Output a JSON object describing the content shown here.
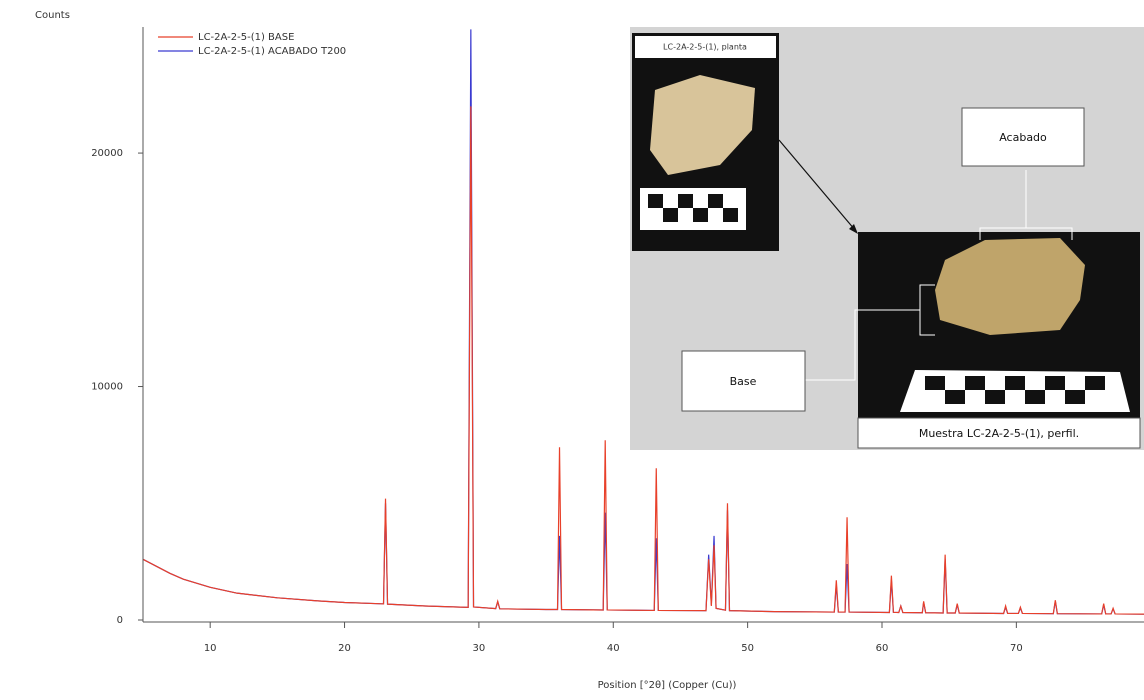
{
  "chart_data": {
    "type": "line",
    "y_label": "Counts",
    "x_label": "Position [°2θ] (Copper (Cu))",
    "x": [
      5,
      6,
      7,
      8,
      10,
      12,
      15,
      18,
      20,
      22.9,
      23.05,
      23.2,
      26,
      29.2,
      29.4,
      29.6,
      31.25,
      31.4,
      31.55,
      35,
      35.85,
      36,
      36.15,
      39.25,
      39.4,
      39.55,
      43.05,
      43.2,
      43.35,
      46.9,
      47.1,
      47.3,
      47.5,
      47.65,
      48.35,
      48.5,
      48.65,
      52,
      56.45,
      56.6,
      56.75,
      57.25,
      57.4,
      57.55,
      60.55,
      60.7,
      60.85,
      61.25,
      61.4,
      61.55,
      63,
      63.1,
      63.25,
      64.55,
      64.7,
      64.85,
      65.45,
      65.6,
      65.75,
      69.05,
      69.2,
      69.35,
      70.15,
      70.3,
      70.45,
      72.75,
      72.9,
      73.05,
      76.35,
      76.5,
      76.65,
      77.05,
      77.2,
      77.35,
      79.5
    ],
    "series": [
      {
        "name": "LC-2A-2-5-(1) ACABADO T200",
        "color": "#3a3ad0",
        "values": [
          2600,
          2300,
          2000,
          1750,
          1400,
          1150,
          950,
          820,
          750,
          690,
          5000,
          680,
          600,
          540,
          25300,
          560,
          490,
          780,
          480,
          450,
          450,
          3600,
          450,
          430,
          4600,
          430,
          410,
          3500,
          410,
          400,
          2800,
          650,
          3600,
          500,
          420,
          4700,
          400,
          360,
          340,
          1500,
          340,
          340,
          2400,
          340,
          320,
          1700,
          330,
          320,
          600,
          320,
          310,
          750,
          310,
          300,
          2600,
          300,
          300,
          650,
          300,
          280,
          550,
          280,
          280,
          520,
          280,
          270,
          800,
          270,
          260,
          650,
          260,
          260,
          480,
          260,
          250
        ]
      },
      {
        "name": "LC-2A-2-5-(1) BASE",
        "color": "#e8402a",
        "values": [
          2600,
          2300,
          2000,
          1750,
          1400,
          1150,
          950,
          820,
          750,
          690,
          5200,
          680,
          600,
          540,
          22000,
          560,
          490,
          800,
          480,
          450,
          450,
          7400,
          450,
          430,
          7700,
          430,
          410,
          6500,
          410,
          400,
          2600,
          600,
          3200,
          500,
          420,
          5000,
          400,
          360,
          340,
          1700,
          340,
          340,
          4400,
          340,
          320,
          1900,
          330,
          320,
          600,
          320,
          310,
          800,
          310,
          300,
          2800,
          300,
          300,
          700,
          300,
          280,
          600,
          280,
          280,
          550,
          280,
          270,
          850,
          270,
          260,
          700,
          260,
          260,
          500,
          260,
          250
        ]
      }
    ],
    "legend_order": [
      1,
      0
    ],
    "xlim": [
      5,
      79.5
    ],
    "xticks": [
      10,
      20,
      30,
      40,
      50,
      60,
      70
    ],
    "ylim": [
      0,
      25400
    ],
    "yticks": [
      0,
      10000,
      20000
    ]
  },
  "inset": {
    "top_photo_label": "LC-2A-2-5-(1), planta",
    "finish_label": "Acabado",
    "base_label": "Base",
    "profile_caption": "Muestra LC-2A-2-5-(1), perfil."
  }
}
